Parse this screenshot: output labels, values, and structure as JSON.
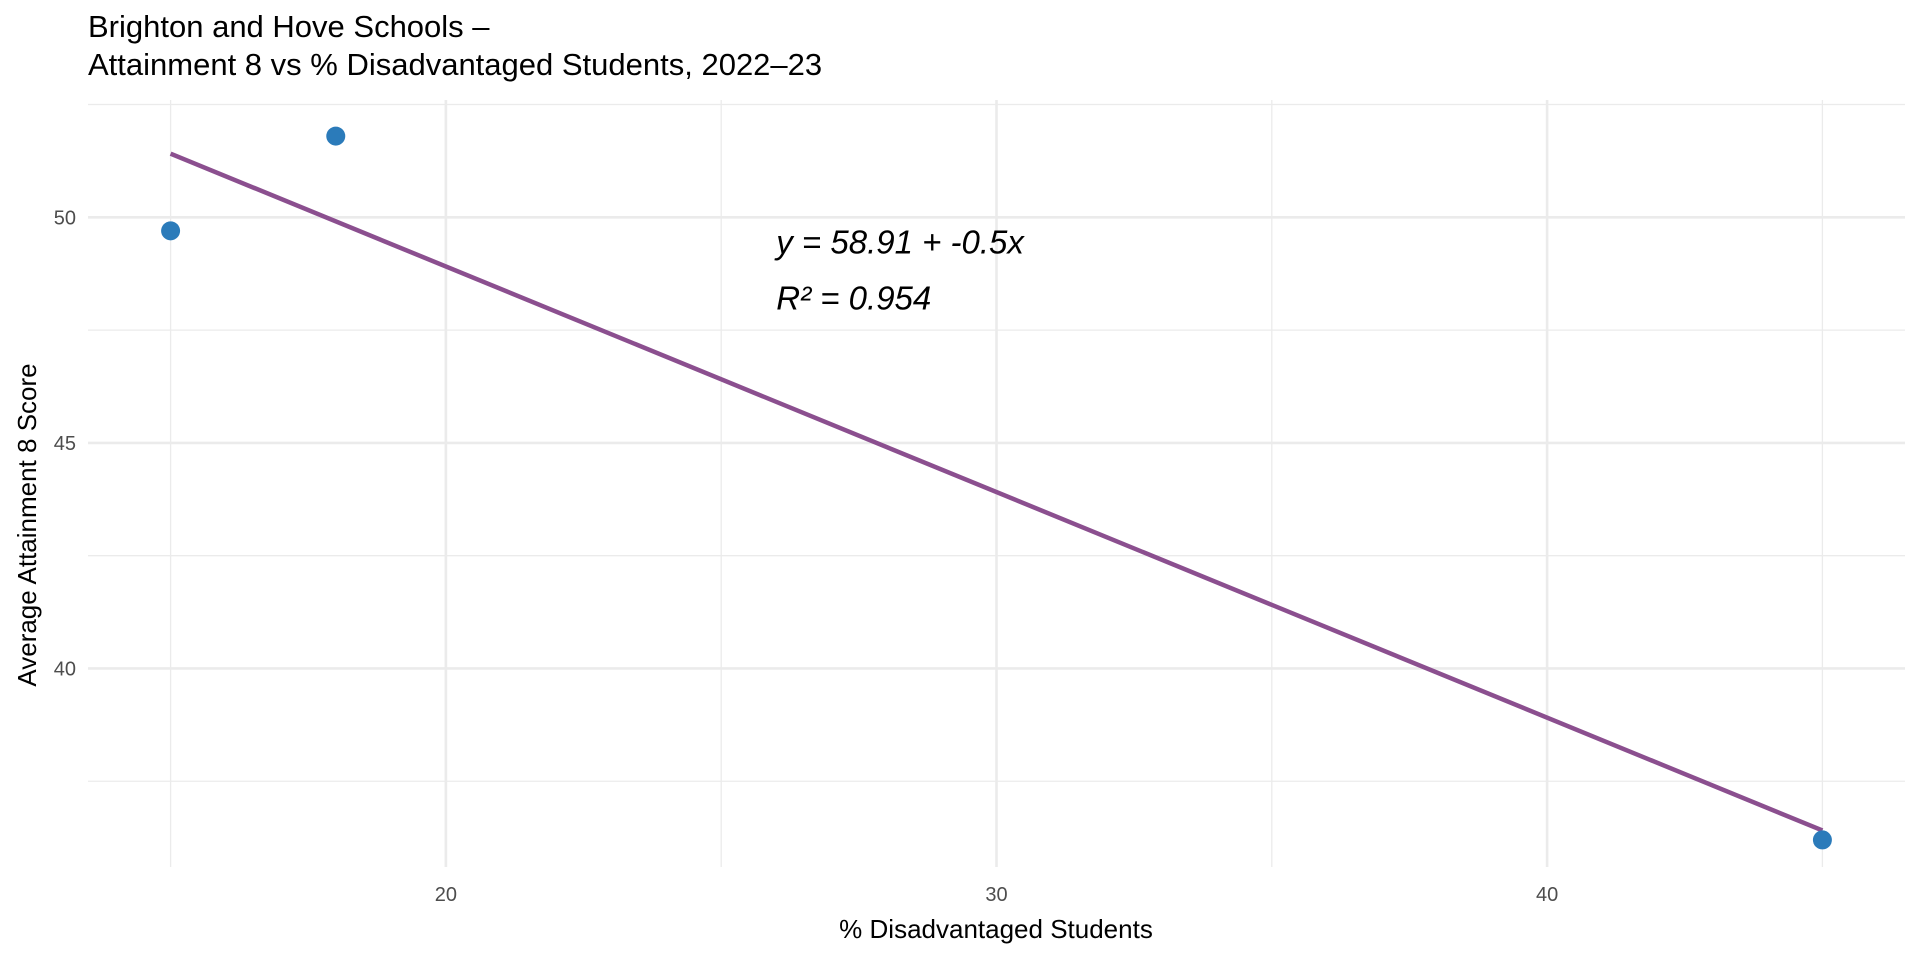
{
  "chart_data": {
    "type": "scatter",
    "title_lines": [
      "Brighton and Hove Schools –",
      "Attainment 8 vs % Disadvantaged Students, 2022–23"
    ],
    "xlabel": "% Disadvantaged Students",
    "ylabel": "Average Attainment 8 Score",
    "xlim": [
      13.5,
      46.5
    ],
    "ylim": [
      35.6,
      52.6
    ],
    "x_ticks": [
      20,
      30,
      40
    ],
    "x_minor_ticks": [
      15,
      25,
      35,
      45
    ],
    "y_ticks": [
      40,
      45,
      50
    ],
    "y_minor_ticks": [
      37.5,
      42.5,
      47.5,
      52.5
    ],
    "grid": true,
    "series": [
      {
        "points": [
          {
            "x": 15.0,
            "y": 49.7
          },
          {
            "x": 18.0,
            "y": 51.8
          },
          {
            "x": 45.0,
            "y": 36.2
          }
        ]
      }
    ],
    "trendline": {
      "intercept": 58.91,
      "slope": -0.5,
      "x_range": [
        15.0,
        45.0
      ]
    },
    "annotation": {
      "lines": [
        "y = 58.91 + -0.5x",
        "R² = 0.954"
      ],
      "x": 26.0,
      "y": 49.2
    },
    "colors": {
      "points": "#2b7bba",
      "trendline": "#8b4f8f",
      "grid": "#ebebeb",
      "tick_text": "#4d4d4d",
      "text": "#000000"
    }
  }
}
